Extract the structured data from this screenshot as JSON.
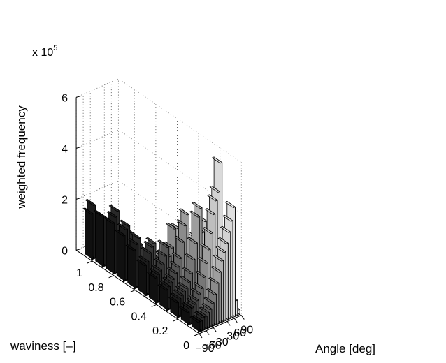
{
  "chart_data": {
    "type": "bar3d",
    "title": "",
    "multiplier_base": "x 10",
    "multiplier_exp": "5",
    "xlabel": "Angle [deg]",
    "ylabel": "waviness [–]",
    "zlabel": "weighted frequency",
    "x_ticks": [
      "−90",
      "−60",
      "−30",
      "30",
      "60",
      "90"
    ],
    "y_ticks": [
      "0",
      "0.2",
      "0.4",
      "0.6",
      "0.8",
      "1"
    ],
    "z_ticks": [
      "0",
      "2",
      "4",
      "6"
    ],
    "z_scale": 100000,
    "xlim": [
      -90,
      90
    ],
    "ylim": [
      0,
      1
    ],
    "zlim": [
      0,
      6
    ],
    "grid": true,
    "angle_bins": [
      -85,
      -75,
      -65,
      -55,
      -45,
      -35,
      -25,
      -15,
      -5,
      5,
      15,
      25,
      35,
      45,
      55,
      65,
      75,
      85
    ],
    "waviness_bins": [
      1.05,
      0.95,
      0.85,
      0.75,
      0.65,
      0.55,
      0.45,
      0.35,
      0.25,
      0.15,
      0.05
    ],
    "colors": [
      "#111111",
      "#1e1e1e",
      "#2c2c2c",
      "#3a3a3a",
      "#4a4a4a",
      "#5a5a5a",
      "#6c6c6c",
      "#808080",
      "#959595",
      "#aaaaaa",
      "#bdbdbd",
      "#cccccc",
      "#d8d8d8",
      "#e2e2e2",
      "#eaeaea",
      "#f1f1f1",
      "#f7f7f7",
      "#fdfdfd"
    ],
    "values": [
      [
        1.8,
        2.1,
        0.5,
        0.4,
        0.3,
        0.2,
        0.2,
        0.1,
        0.05,
        0.05,
        0.05,
        0.05,
        0.05,
        0.05,
        0.05,
        0.05,
        0.05,
        0.05
      ],
      [
        2.0,
        1.9,
        1.6,
        0.9,
        0.5,
        0.4,
        0.3,
        0.2,
        0.1,
        0.1,
        0.1,
        0.1,
        0.05,
        0.05,
        0.05,
        0.05,
        0.05,
        0.05
      ],
      [
        2.0,
        2.2,
        2.4,
        1.7,
        1.4,
        0.8,
        0.6,
        0.5,
        0.3,
        0.2,
        0.2,
        0.2,
        0.2,
        0.1,
        0.1,
        0.1,
        0.1,
        0.05
      ],
      [
        1.8,
        2.0,
        2.1,
        1.8,
        1.6,
        1.5,
        1.2,
        1.0,
        0.7,
        0.5,
        0.4,
        0.3,
        0.3,
        0.2,
        0.2,
        0.1,
        0.1,
        0.1
      ],
      [
        1.5,
        1.7,
        1.9,
        1.6,
        1.4,
        1.2,
        1.0,
        0.9,
        0.8,
        0.6,
        0.5,
        0.4,
        0.3,
        0.3,
        0.2,
        0.2,
        0.1,
        0.1
      ],
      [
        1.2,
        1.3,
        1.6,
        1.8,
        1.9,
        1.3,
        1.1,
        1.0,
        1.2,
        1.6,
        0.9,
        0.8,
        0.6,
        0.5,
        0.3,
        0.3,
        0.2,
        0.2
      ],
      [
        1.0,
        1.1,
        1.2,
        1.4,
        1.7,
        2.0,
        1.6,
        1.9,
        2.6,
        2.2,
        2.5,
        1.8,
        1.5,
        1.1,
        0.8,
        0.5,
        0.4,
        0.3
      ],
      [
        0.8,
        0.9,
        1.0,
        1.1,
        1.3,
        1.5,
        1.8,
        2.4,
        3.0,
        3.4,
        2.4,
        2.2,
        2.4,
        1.5,
        1.6,
        1.1,
        0.9,
        0.6
      ],
      [
        0.6,
        0.7,
        0.8,
        0.9,
        1.0,
        1.2,
        1.5,
        2.0,
        2.6,
        3.6,
        3.9,
        2.9,
        3.3,
        2.9,
        2.1,
        1.6,
        1.2,
        1.0
      ],
      [
        0.5,
        0.6,
        0.6,
        0.7,
        0.8,
        1.0,
        1.2,
        1.6,
        2.1,
        2.6,
        3.2,
        3.9,
        4.4,
        4.7,
        5.8,
        2.0,
        0.9,
        0.5
      ],
      [
        0.4,
        0.4,
        0.5,
        0.5,
        0.6,
        0.7,
        0.9,
        1.2,
        1.6,
        2.0,
        2.4,
        2.7,
        3.0,
        3.4,
        3.8,
        4.3,
        0.6,
        0.2
      ]
    ]
  }
}
